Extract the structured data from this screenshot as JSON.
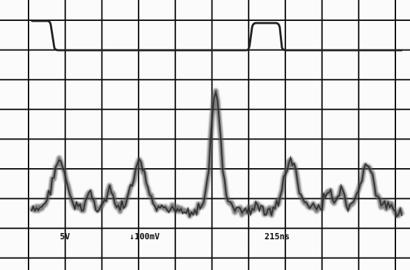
{
  "labels": {
    "volts_per_div_1": "5V",
    "volts_per_div_2": "↓100mV",
    "time_per_div": "215ns"
  }
}
